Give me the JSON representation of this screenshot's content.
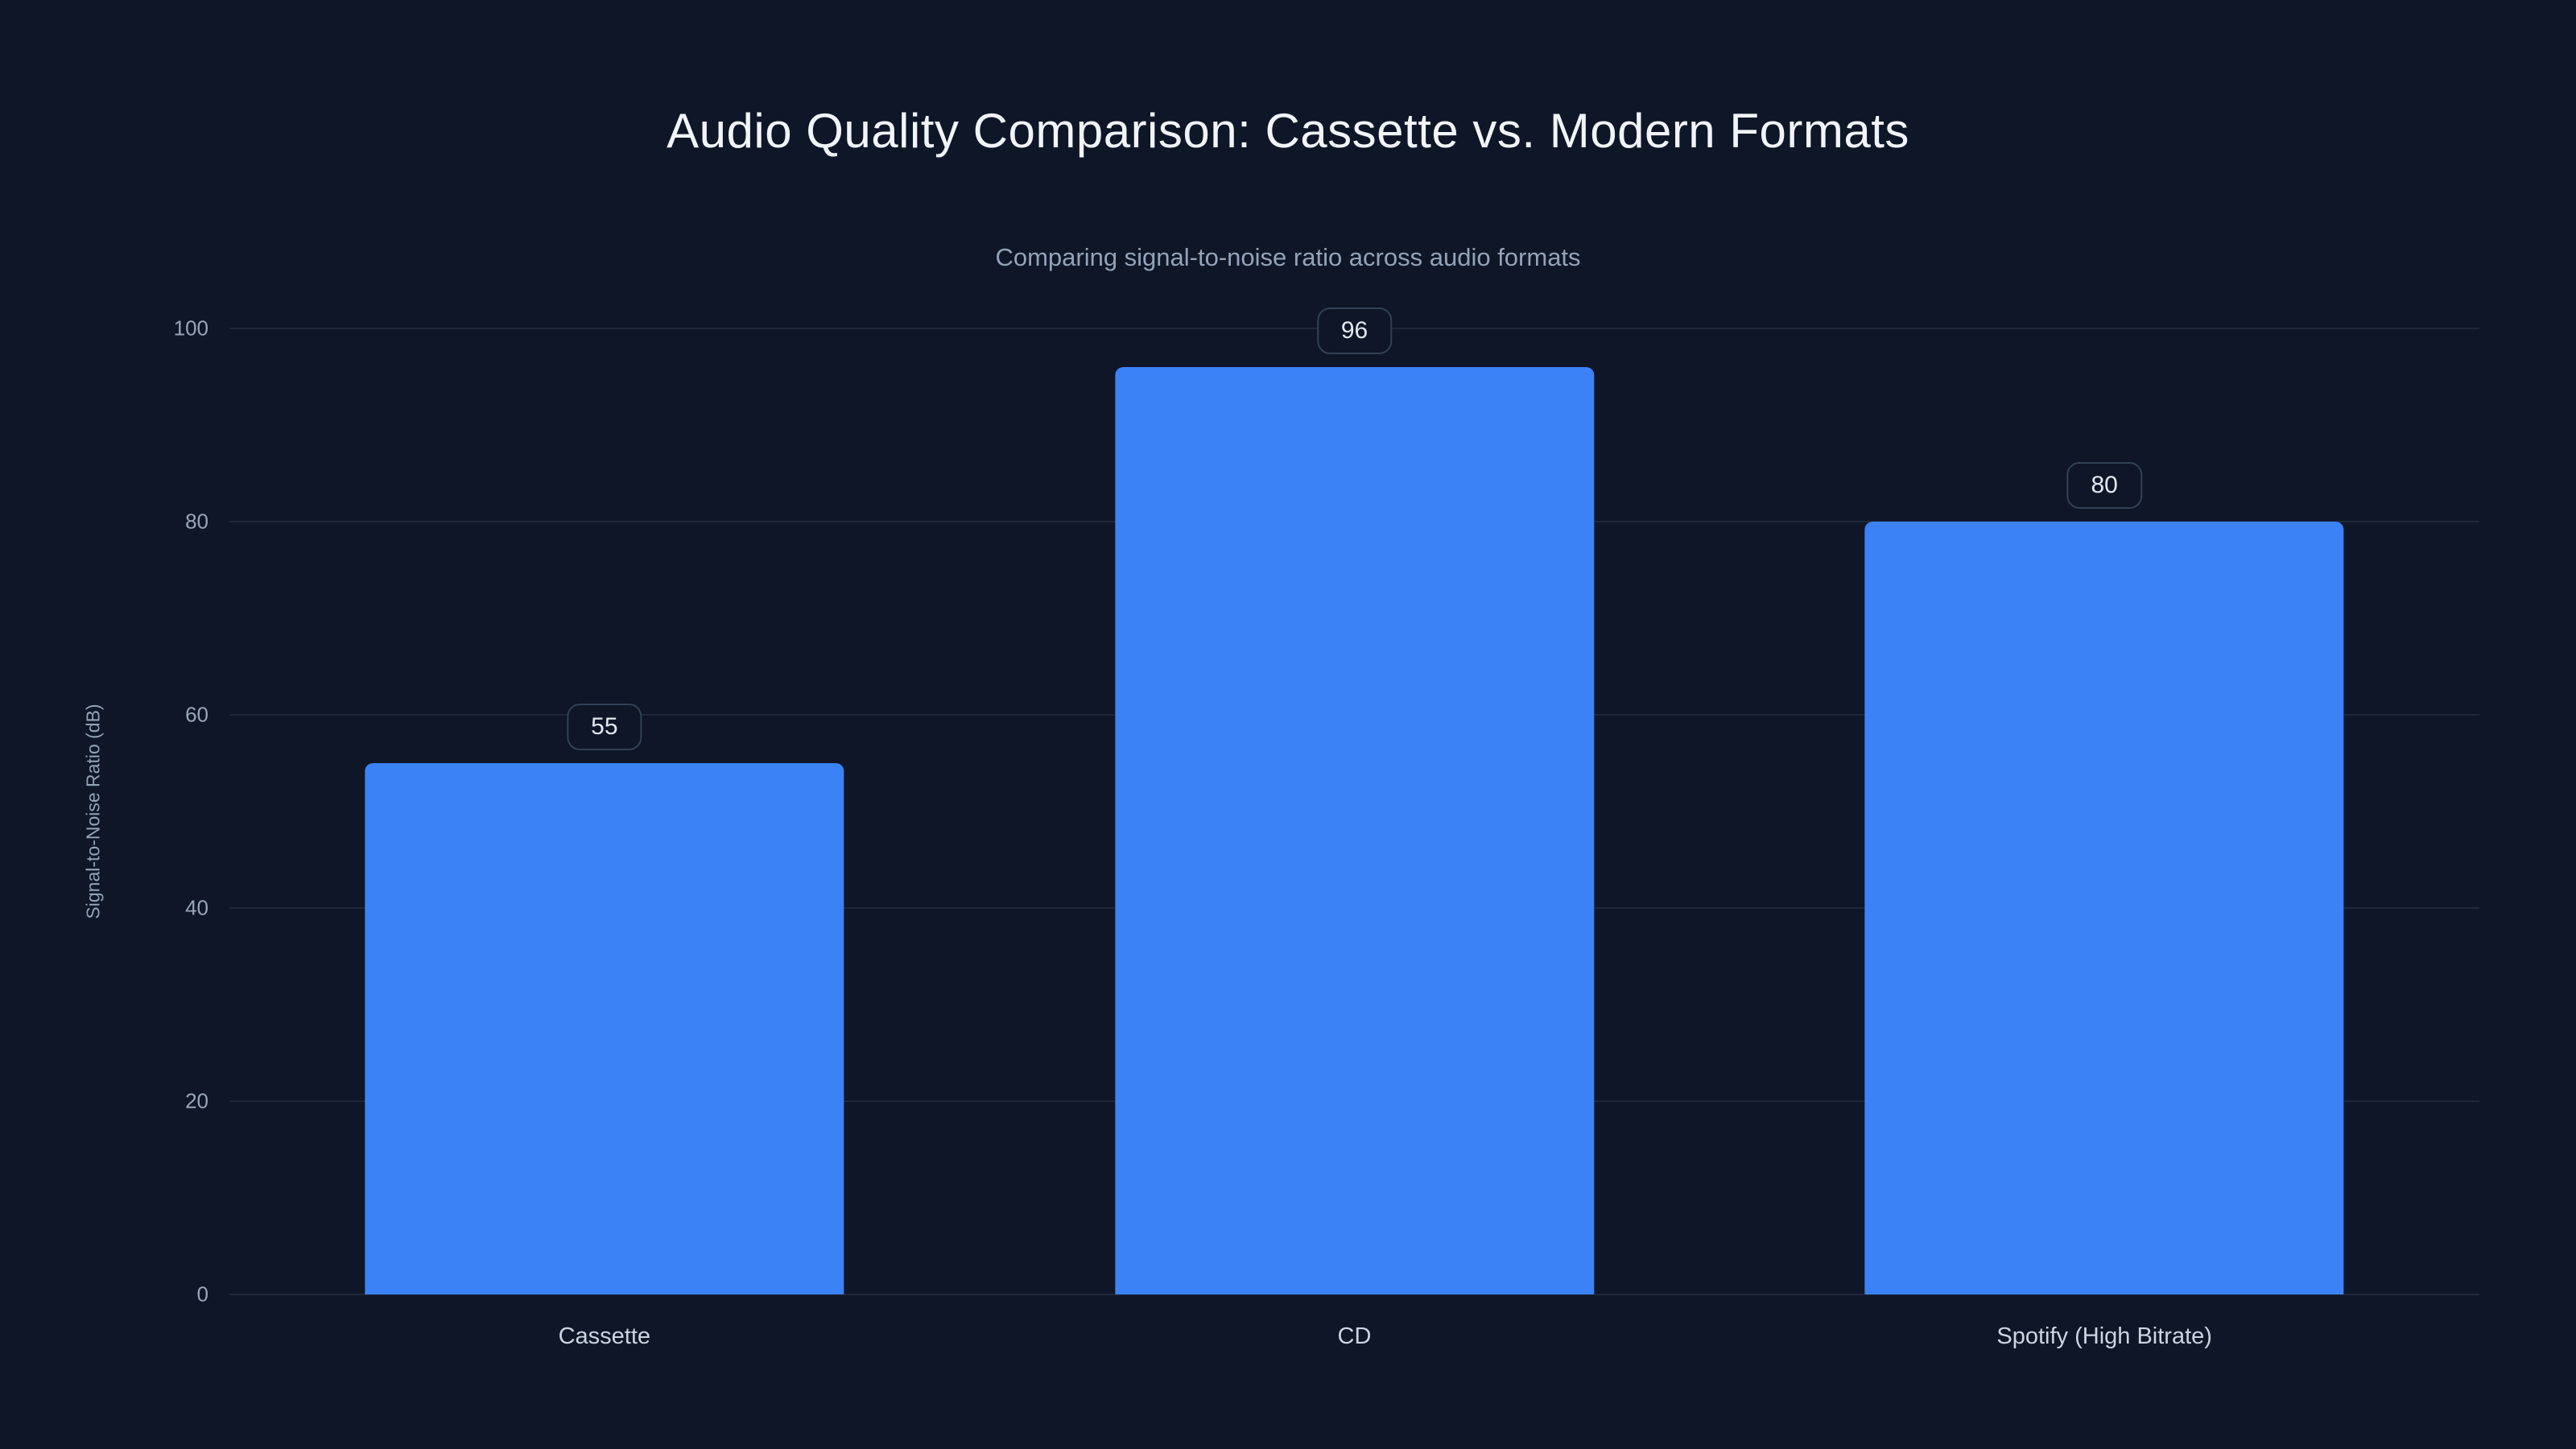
{
  "page": {
    "title": "Audio Quality Comparison: Cassette vs. Modern Formats",
    "subtitle": "Comparing signal-to-noise ratio across audio formats"
  },
  "chart_data": {
    "type": "bar",
    "title": "Audio Quality Comparison: Cassette vs. Modern Formats",
    "subtitle": "Comparing signal-to-noise ratio across audio formats",
    "categories": [
      "Cassette",
      "CD",
      "Spotify (High Bitrate)"
    ],
    "values": [
      55,
      96,
      80
    ],
    "data_labels": [
      "55",
      "96",
      "80"
    ],
    "xlabel": "",
    "ylabel": "Signal-to-Noise Ratio (dB)",
    "ylim": [
      0,
      100
    ],
    "yticks": [
      0,
      20,
      40,
      60,
      80,
      100
    ],
    "grid": true,
    "legend_position": "none",
    "colors": {
      "background": "#0e1627",
      "bar": "#3b82f6",
      "title_text": "#f1f5f9",
      "subtitle_text": "#94a3b8",
      "tick_text": "#9aa6b8",
      "gridline": "rgba(148,163,184,0.13)",
      "value_label_border": "#334155",
      "value_label_text": "#e2e8f0"
    }
  }
}
